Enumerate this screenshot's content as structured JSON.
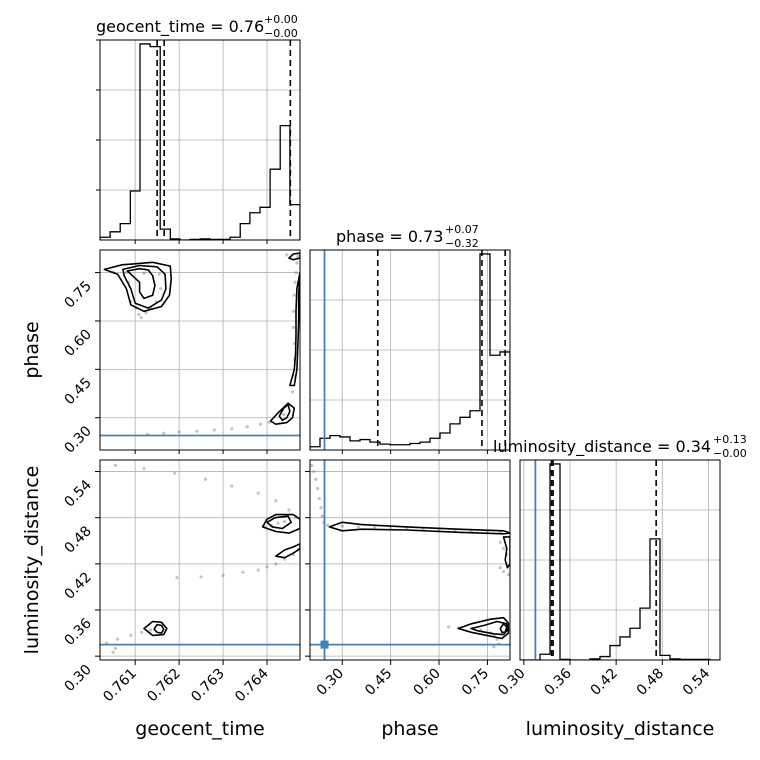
{
  "colors": {
    "truth": "#4682b4",
    "hist": "#000000",
    "grid": "#b0b0b0",
    "quantile": "#000000"
  },
  "titles": {
    "geocent_time": {
      "text": "geocent_time = 0.76",
      "sup": "+0.00",
      "sub": "−0.00"
    },
    "phase": {
      "text": "phase = 0.73",
      "sup": "+0.07",
      "sub": "−0.32"
    },
    "luminosity_distance": {
      "text": "luminosity_distance = 0.34",
      "sup": "+0.13",
      "sub": "−0.00"
    }
  },
  "chart_data": {
    "type": "corner",
    "parameters": [
      "geocent_time",
      "phase",
      "luminosity_distance"
    ],
    "axis_labels": {
      "x": [
        "geocent_time",
        "phase",
        "luminosity_distance"
      ],
      "y": [
        "phase",
        "luminosity_distance"
      ]
    },
    "ranges": {
      "geocent_time": [
        0.7602,
        0.76475
      ],
      "phase": [
        0.2,
        0.82
      ],
      "luminosity_distance": [
        0.295,
        0.555
      ]
    },
    "ticks": {
      "geocent_time": {
        "values": [
          0.761,
          0.762,
          0.763,
          0.764
        ],
        "labels": [
          "0.761",
          "0.762",
          "0.763",
          "0.764"
        ]
      },
      "phase": {
        "values": [
          0.3,
          0.45,
          0.6,
          0.75
        ],
        "labels": [
          "0.30",
          "0.45",
          "0.60",
          "0.75"
        ]
      },
      "luminosity_distance": {
        "values": [
          0.3,
          0.36,
          0.42,
          0.48,
          0.54
        ],
        "labels": [
          "0.30",
          "0.36",
          "0.42",
          "0.48",
          "0.54"
        ]
      }
    },
    "truths": {
      "phase": 0.245,
      "luminosity_distance": 0.315
    },
    "histograms": {
      "geocent_time": {
        "edges": [
          0.7602,
          0.76043,
          0.76066,
          0.76089,
          0.76111,
          0.76134,
          0.76157,
          0.7618,
          0.76202,
          0.76225,
          0.76248,
          0.76271,
          0.76293,
          0.76316,
          0.76339,
          0.76361,
          0.76384,
          0.76407,
          0.7643,
          0.76452,
          0.76475
        ],
        "counts": [
          0.5,
          1.5,
          3.0,
          9.0,
          36.0,
          35.5,
          2.0,
          0.2,
          0,
          0.1,
          0.2,
          0.1,
          0.1,
          0.5,
          3.0,
          5.0,
          6.0,
          13.0,
          21.0,
          6.5
        ],
        "quantiles": [
          0.7615,
          0.76166,
          0.76453
        ]
      },
      "phase": {
        "edges": [
          0.2,
          0.231,
          0.262,
          0.293,
          0.324,
          0.355,
          0.386,
          0.417,
          0.448,
          0.479,
          0.51,
          0.541,
          0.572,
          0.603,
          0.634,
          0.665,
          0.696,
          0.727,
          0.758,
          0.789,
          0.82
        ],
        "counts": [
          0.5,
          1.8,
          2.2,
          2.0,
          1.4,
          1.6,
          1.2,
          0.9,
          0.8,
          0.8,
          1.0,
          1.2,
          1.8,
          2.6,
          4.0,
          5.0,
          6.0,
          30.0,
          14.5,
          15.0
        ],
        "quantiles": [
          0.41,
          0.733,
          0.805
        ]
      },
      "luminosity_distance": {
        "edges": [
          0.295,
          0.308,
          0.321,
          0.334,
          0.347,
          0.36,
          0.373,
          0.386,
          0.399,
          0.412,
          0.425,
          0.438,
          0.451,
          0.464,
          0.477,
          0.49,
          0.503,
          0.516,
          0.529,
          0.542,
          0.555
        ],
        "counts": [
          0,
          0,
          1.0,
          34.0,
          0.1,
          0,
          0,
          0.2,
          0.6,
          2.5,
          4.0,
          5.5,
          9.0,
          21.0,
          0.8,
          0.2,
          0.1,
          0.1,
          0.1,
          0
        ],
        "quantiles": [
          0.336,
          0.338,
          0.472
        ]
      }
    },
    "scatter_2d": {
      "geocent_time_vs_phase": [
        [
          0.76128,
          0.248
        ],
        [
          0.76165,
          0.252
        ],
        [
          0.762,
          0.256
        ],
        [
          0.7624,
          0.258
        ],
        [
          0.7628,
          0.262
        ],
        [
          0.7632,
          0.266
        ],
        [
          0.76355,
          0.272
        ],
        [
          0.76385,
          0.28
        ],
        [
          0.76405,
          0.286
        ],
        [
          0.76438,
          0.31
        ],
        [
          0.76448,
          0.34
        ],
        [
          0.76458,
          0.38
        ],
        [
          0.76462,
          0.43
        ],
        [
          0.76463,
          0.48
        ],
        [
          0.76462,
          0.53
        ],
        [
          0.7646,
          0.58
        ],
        [
          0.7646,
          0.63
        ],
        [
          0.76462,
          0.68
        ],
        [
          0.76464,
          0.72
        ],
        [
          0.76466,
          0.75
        ],
        [
          0.76468,
          0.78
        ],
        [
          0.76085,
          0.72
        ],
        [
          0.7609,
          0.66
        ],
        [
          0.76102,
          0.64
        ],
        [
          0.76108,
          0.62
        ],
        [
          0.76114,
          0.61
        ],
        [
          0.76125,
          0.625
        ],
        [
          0.76135,
          0.64
        ],
        [
          0.76148,
          0.66
        ],
        [
          0.76158,
          0.7
        ],
        [
          0.7605,
          0.752
        ],
        [
          0.7608,
          0.75
        ],
        [
          0.7612,
          0.748
        ],
        [
          0.76155,
          0.745
        ],
        [
          0.76445,
          0.805
        ],
        [
          0.7647,
          0.8
        ]
      ],
      "geocent_time_vs_luminosity_distance": [
        [
          0.76035,
          0.317
        ],
        [
          0.7606,
          0.322
        ],
        [
          0.7609,
          0.327
        ],
        [
          0.76115,
          0.331
        ],
        [
          0.76135,
          0.334
        ],
        [
          0.7605,
          0.305
        ],
        [
          0.76055,
          0.31
        ],
        [
          0.76055,
          0.548
        ],
        [
          0.7612,
          0.544
        ],
        [
          0.7619,
          0.538
        ],
        [
          0.7626,
          0.53
        ],
        [
          0.7632,
          0.521
        ],
        [
          0.7638,
          0.512
        ],
        [
          0.7642,
          0.502
        ],
        [
          0.7645,
          0.49
        ],
        [
          0.76465,
          0.48
        ],
        [
          0.76195,
          0.402
        ],
        [
          0.7625,
          0.403
        ],
        [
          0.763,
          0.405
        ],
        [
          0.76345,
          0.409
        ],
        [
          0.7638,
          0.412
        ],
        [
          0.764,
          0.416
        ],
        [
          0.7642,
          0.42
        ],
        [
          0.7644,
          0.426
        ],
        [
          0.7646,
          0.432
        ],
        [
          0.76472,
          0.438
        ],
        [
          0.76395,
          0.468
        ],
        [
          0.7641,
          0.47
        ],
        [
          0.76425,
          0.473
        ],
        [
          0.7644,
          0.475
        ]
      ],
      "phase_vs_luminosity_distance": [
        [
          0.205,
          0.548
        ],
        [
          0.212,
          0.54
        ],
        [
          0.218,
          0.53
        ],
        [
          0.224,
          0.518
        ],
        [
          0.229,
          0.505
        ],
        [
          0.234,
          0.493
        ],
        [
          0.238,
          0.482
        ],
        [
          0.243,
          0.474
        ],
        [
          0.255,
          0.47
        ],
        [
          0.3,
          0.469
        ],
        [
          0.35,
          0.468
        ],
        [
          0.4,
          0.467
        ],
        [
          0.45,
          0.466
        ],
        [
          0.5,
          0.466
        ],
        [
          0.55,
          0.465
        ],
        [
          0.6,
          0.464
        ],
        [
          0.65,
          0.463
        ],
        [
          0.7,
          0.463
        ],
        [
          0.75,
          0.462
        ],
        [
          0.79,
          0.461
        ],
        [
          0.815,
          0.46
        ],
        [
          0.79,
          0.448
        ],
        [
          0.8,
          0.44
        ],
        [
          0.81,
          0.432
        ],
        [
          0.79,
          0.415
        ],
        [
          0.8,
          0.41
        ],
        [
          0.815,
          0.406
        ],
        [
          0.63,
          0.338
        ],
        [
          0.66,
          0.337
        ],
        [
          0.7,
          0.336
        ],
        [
          0.73,
          0.334
        ],
        [
          0.76,
          0.33
        ],
        [
          0.77,
          0.327
        ],
        [
          0.78,
          0.322
        ],
        [
          0.785,
          0.316
        ],
        [
          0.77,
          0.312
        ]
      ]
    },
    "contours_2d": {
      "geocent_time_vs_phase": [
        [
          [
            0.76082,
            0.755
          ],
          [
            0.7611,
            0.762
          ],
          [
            0.7613,
            0.758
          ],
          [
            0.7614,
            0.74
          ],
          [
            0.76145,
            0.71
          ],
          [
            0.7614,
            0.68
          ],
          [
            0.7612,
            0.67
          ],
          [
            0.7611,
            0.69
          ],
          [
            0.7611,
            0.72
          ],
          [
            0.7609,
            0.745
          ],
          [
            0.76082,
            0.755
          ]
        ],
        [
          [
            0.76072,
            0.76
          ],
          [
            0.7611,
            0.772
          ],
          [
            0.7615,
            0.768
          ],
          [
            0.76168,
            0.745
          ],
          [
            0.7617,
            0.7
          ],
          [
            0.7616,
            0.665
          ],
          [
            0.7613,
            0.64
          ],
          [
            0.761,
            0.655
          ],
          [
            0.7609,
            0.7
          ],
          [
            0.76075,
            0.74
          ],
          [
            0.76072,
            0.76
          ]
        ],
        [
          [
            0.7603,
            0.76
          ],
          [
            0.7607,
            0.774
          ],
          [
            0.7614,
            0.782
          ],
          [
            0.7618,
            0.77
          ],
          [
            0.76182,
            0.73
          ],
          [
            0.76178,
            0.68
          ],
          [
            0.7616,
            0.645
          ],
          [
            0.7612,
            0.63
          ],
          [
            0.7609,
            0.65
          ],
          [
            0.7608,
            0.7
          ],
          [
            0.7606,
            0.745
          ],
          [
            0.7603,
            0.76
          ]
        ],
        [
          [
            0.76428,
            0.305
          ],
          [
            0.76438,
            0.33
          ],
          [
            0.76448,
            0.34
          ],
          [
            0.76452,
            0.32
          ],
          [
            0.76445,
            0.3
          ],
          [
            0.76435,
            0.292
          ],
          [
            0.76428,
            0.305
          ]
        ],
        [
          [
            0.76408,
            0.29
          ],
          [
            0.76425,
            0.315
          ],
          [
            0.76448,
            0.345
          ],
          [
            0.76462,
            0.33
          ],
          [
            0.76458,
            0.3
          ],
          [
            0.76445,
            0.285
          ],
          [
            0.7642,
            0.28
          ],
          [
            0.76408,
            0.29
          ]
        ],
        [
          [
            0.76452,
            0.4
          ],
          [
            0.76462,
            0.45
          ],
          [
            0.76465,
            0.5
          ],
          [
            0.76466,
            0.56
          ],
          [
            0.76466,
            0.63
          ],
          [
            0.76468,
            0.7
          ],
          [
            0.76475,
            0.75
          ],
          [
            0.76472,
            0.68
          ],
          [
            0.76472,
            0.6
          ],
          [
            0.7647,
            0.52
          ],
          [
            0.76468,
            0.45
          ],
          [
            0.76462,
            0.4
          ],
          [
            0.76452,
            0.4
          ]
        ],
        [
          [
            0.7645,
            0.795
          ],
          [
            0.7646,
            0.808
          ],
          [
            0.76475,
            0.81
          ],
          [
            0.76475,
            0.795
          ],
          [
            0.7646,
            0.79
          ],
          [
            0.7645,
            0.795
          ]
        ]
      ],
      "geocent_time_vs_luminosity_distance": [
        [
          [
            0.76143,
            0.335
          ],
          [
            0.7615,
            0.341
          ],
          [
            0.7616,
            0.34
          ],
          [
            0.76165,
            0.335
          ],
          [
            0.7616,
            0.33
          ],
          [
            0.7615,
            0.331
          ],
          [
            0.76143,
            0.335
          ]
        ],
        [
          [
            0.7612,
            0.336
          ],
          [
            0.7614,
            0.345
          ],
          [
            0.7616,
            0.344
          ],
          [
            0.76172,
            0.336
          ],
          [
            0.76165,
            0.328
          ],
          [
            0.7614,
            0.327
          ],
          [
            0.7612,
            0.336
          ]
        ],
        [
          [
            0.764,
            0.474
          ],
          [
            0.76418,
            0.48
          ],
          [
            0.76448,
            0.482
          ],
          [
            0.76455,
            0.474
          ],
          [
            0.76435,
            0.466
          ],
          [
            0.76412,
            0.468
          ],
          [
            0.764,
            0.474
          ]
        ],
        [
          [
            0.7639,
            0.468
          ],
          [
            0.764,
            0.478
          ],
          [
            0.7642,
            0.484
          ],
          [
            0.7646,
            0.484
          ],
          [
            0.76475,
            0.478
          ],
          [
            0.76475,
            0.466
          ],
          [
            0.7645,
            0.46
          ],
          [
            0.7642,
            0.462
          ],
          [
            0.7639,
            0.468
          ]
        ],
        [
          [
            0.7642,
            0.43
          ],
          [
            0.7644,
            0.438
          ],
          [
            0.7646,
            0.442
          ],
          [
            0.76475,
            0.446
          ],
          [
            0.76475,
            0.44
          ],
          [
            0.7646,
            0.434
          ],
          [
            0.7644,
            0.428
          ],
          [
            0.7642,
            0.43
          ]
        ]
      ],
      "phase_vs_luminosity_distance": [
        [
          [
            0.79,
            0.336
          ],
          [
            0.8,
            0.342
          ],
          [
            0.81,
            0.338
          ],
          [
            0.805,
            0.331
          ],
          [
            0.795,
            0.331
          ],
          [
            0.79,
            0.336
          ]
        ],
        [
          [
            0.7,
            0.336
          ],
          [
            0.74,
            0.34
          ],
          [
            0.78,
            0.345
          ],
          [
            0.81,
            0.342
          ],
          [
            0.812,
            0.334
          ],
          [
            0.8,
            0.328
          ],
          [
            0.77,
            0.329
          ],
          [
            0.72,
            0.333
          ],
          [
            0.7,
            0.336
          ]
        ],
        [
          [
            0.66,
            0.336
          ],
          [
            0.7,
            0.342
          ],
          [
            0.76,
            0.348
          ],
          [
            0.8,
            0.35
          ],
          [
            0.815,
            0.343
          ],
          [
            0.815,
            0.33
          ],
          [
            0.795,
            0.323
          ],
          [
            0.76,
            0.326
          ],
          [
            0.7,
            0.331
          ],
          [
            0.66,
            0.336
          ]
        ],
        [
          [
            0.26,
            0.468
          ],
          [
            0.3,
            0.474
          ],
          [
            0.36,
            0.471
          ],
          [
            0.5,
            0.468
          ],
          [
            0.66,
            0.465
          ],
          [
            0.8,
            0.463
          ],
          [
            0.82,
            0.46
          ],
          [
            0.8,
            0.459
          ],
          [
            0.66,
            0.461
          ],
          [
            0.5,
            0.464
          ],
          [
            0.36,
            0.465
          ],
          [
            0.3,
            0.463
          ],
          [
            0.26,
            0.468
          ]
        ],
        [
          [
            0.8,
            0.455
          ],
          [
            0.81,
            0.44
          ],
          [
            0.805,
            0.425
          ],
          [
            0.812,
            0.415
          ],
          [
            0.82,
            0.42
          ],
          [
            0.82,
            0.455
          ],
          [
            0.8,
            0.455
          ]
        ]
      ]
    }
  }
}
